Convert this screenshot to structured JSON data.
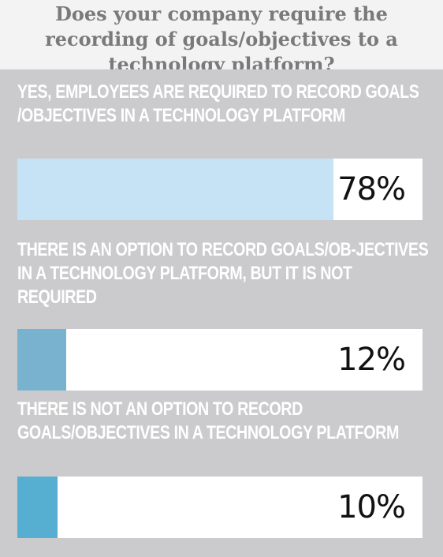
{
  "title": "Does your company require the recording of goals/objectives to a technology platform?",
  "chart_data": {
    "type": "bar",
    "orientation": "horizontal",
    "categories": [
      "YES, EMPLOYEES ARE REQUIRED TO RECORD GOALS /OBJECTIVES IN A TECHNOLOGY PLATFORM",
      "THERE IS AN OPTION TO RECORD GOALS/OB-JECTIVES IN A TECHNOLOGY PLATFORM, BUT IT IS NOT REQUIRED",
      "THERE IS NOT AN OPTION TO RECORD GOALS/OBJECTIVES IN A TECHNOLOGY PLATFORM"
    ],
    "values": [
      78,
      12,
      10
    ],
    "value_labels": [
      "78%",
      "12%",
      "10%"
    ],
    "xlim": [
      0,
      100
    ],
    "bar_colors": [
      "#c6e3f6",
      "#79b2cf",
      "#56aed0"
    ],
    "grid": false,
    "legend": "none"
  }
}
